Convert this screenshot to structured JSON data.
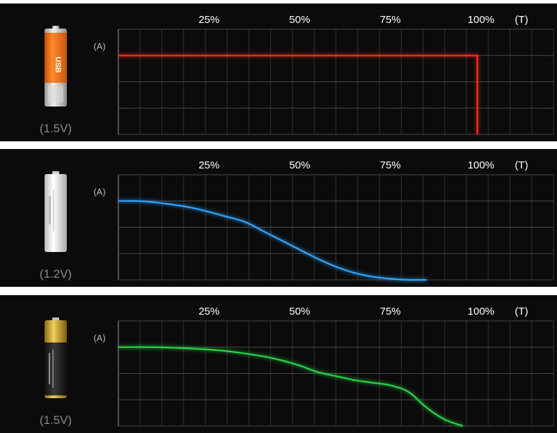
{
  "panels": [
    {
      "voltage_label": "(1.5V)",
      "battery_icon": "usb-rechargeable-aa-battery-icon",
      "chart_data": {
        "type": "line",
        "xlabel": "(T)",
        "ylabel": "(A)",
        "x_ticks": [
          "25%",
          "50%",
          "75%",
          "100%"
        ],
        "xlim": [
          0,
          120
        ],
        "ylim": [
          0,
          4
        ],
        "grid": true,
        "series": [
          {
            "color": "#ff2a1f",
            "x": [
              0,
              10,
              20,
              30,
              40,
              50,
              60,
              70,
              80,
              90,
              99,
              99
            ],
            "y": [
              3,
              3,
              3,
              3,
              3,
              3,
              3,
              3,
              3,
              3,
              3,
              0
            ]
          }
        ]
      }
    },
    {
      "voltage_label": "(1.2V)",
      "battery_icon": "nimh-aa-battery-icon",
      "chart_data": {
        "type": "line",
        "xlabel": "(T)",
        "ylabel": "(A)",
        "x_ticks": [
          "25%",
          "50%",
          "75%",
          "100%"
        ],
        "xlim": [
          0,
          120
        ],
        "ylim": [
          0,
          4
        ],
        "grid": true,
        "series": [
          {
            "color": "#2fa6ff",
            "x": [
              0,
              5,
              10,
              20,
              30,
              35,
              40,
              50,
              55,
              60,
              65,
              70,
              75,
              80,
              85
            ],
            "y": [
              3.0,
              3.0,
              2.95,
              2.75,
              2.4,
              2.2,
              1.85,
              1.15,
              0.8,
              0.5,
              0.27,
              0.12,
              0.04,
              0.0,
              0.0
            ]
          }
        ]
      }
    },
    {
      "voltage_label": "(1.5V)",
      "battery_icon": "alkaline-aa-battery-icon",
      "chart_data": {
        "type": "line",
        "xlabel": "(T)",
        "ylabel": "(A)",
        "x_ticks": [
          "25%",
          "50%",
          "75%",
          "100%"
        ],
        "xlim": [
          0,
          120
        ],
        "ylim": [
          0,
          4
        ],
        "grid": true,
        "series": [
          {
            "color": "#2bd24a",
            "x": [
              0,
              10,
              20,
              30,
              40,
              45,
              50,
              55,
              60,
              65,
              70,
              75,
              80,
              85,
              90,
              95
            ],
            "y": [
              3.0,
              3.0,
              2.95,
              2.85,
              2.65,
              2.5,
              2.3,
              2.05,
              1.9,
              1.75,
              1.65,
              1.55,
              1.3,
              0.7,
              0.25,
              0.0
            ]
          }
        ]
      }
    }
  ]
}
